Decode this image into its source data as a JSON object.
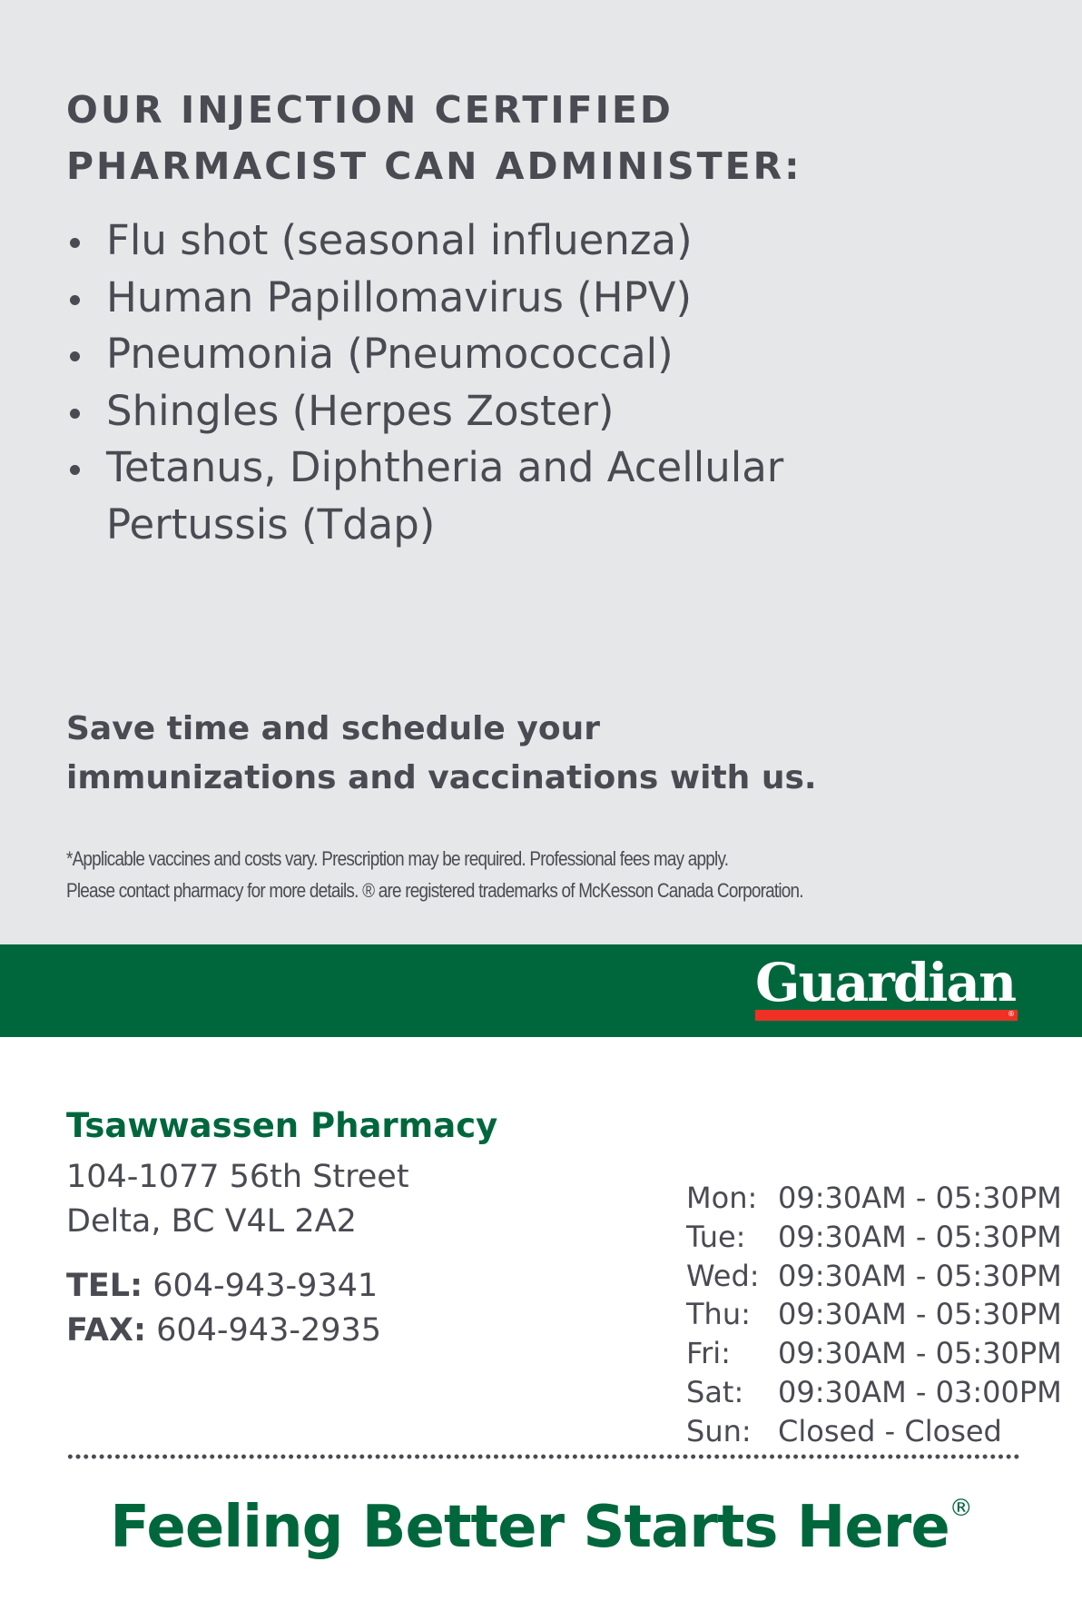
{
  "heading": [
    "OUR INJECTION CERTIFIED",
    "PHARMACIST CAN ADMINISTER:"
  ],
  "services": [
    "Flu shot (seasonal influenza)",
    "Human Papillomavirus (HPV)",
    "Pneumonia (Pneumococcal)",
    "Shingles (Herpes Zoster)",
    "Tetanus, Diphtheria and Acellular Pertussis (Tdap)"
  ],
  "save": [
    "Save time and schedule your",
    "immunizations and vaccinations with us."
  ],
  "footnote": [
    "*Applicable vaccines and costs vary. Prescription may be required. Professional fees may apply.",
    "Please contact pharmacy for more details. ® are registered trademarks of McKesson Canada Corporation."
  ],
  "brand": {
    "logo": "Guardian",
    "logo_reg": "®",
    "green": "#00673d",
    "red": "#ee3124"
  },
  "pharmacy": {
    "name": "Tsawwassen Pharmacy",
    "address": [
      "104-1077 56th Street",
      "Delta, BC V4L 2A2"
    ],
    "tel_label": "TEL:",
    "tel": "604-943-9341",
    "fax_label": "FAX:",
    "fax": "604-943-2935"
  },
  "hours": [
    {
      "day": "Mon:",
      "time": "09:30AM - 05:30PM"
    },
    {
      "day": "Tue:",
      "time": "09:30AM - 05:30PM"
    },
    {
      "day": "Wed:",
      "time": "09:30AM - 05:30PM"
    },
    {
      "day": "Thu:",
      "time": "09:30AM - 05:30PM"
    },
    {
      "day": "Fri:",
      "time": "09:30AM - 05:30PM"
    },
    {
      "day": "Sat:",
      "time": "09:30AM - 03:00PM"
    },
    {
      "day": "Sun:",
      "time": "Closed - Closed"
    }
  ],
  "tagline": "Feeling Better Starts Here",
  "tagline_reg": "®"
}
